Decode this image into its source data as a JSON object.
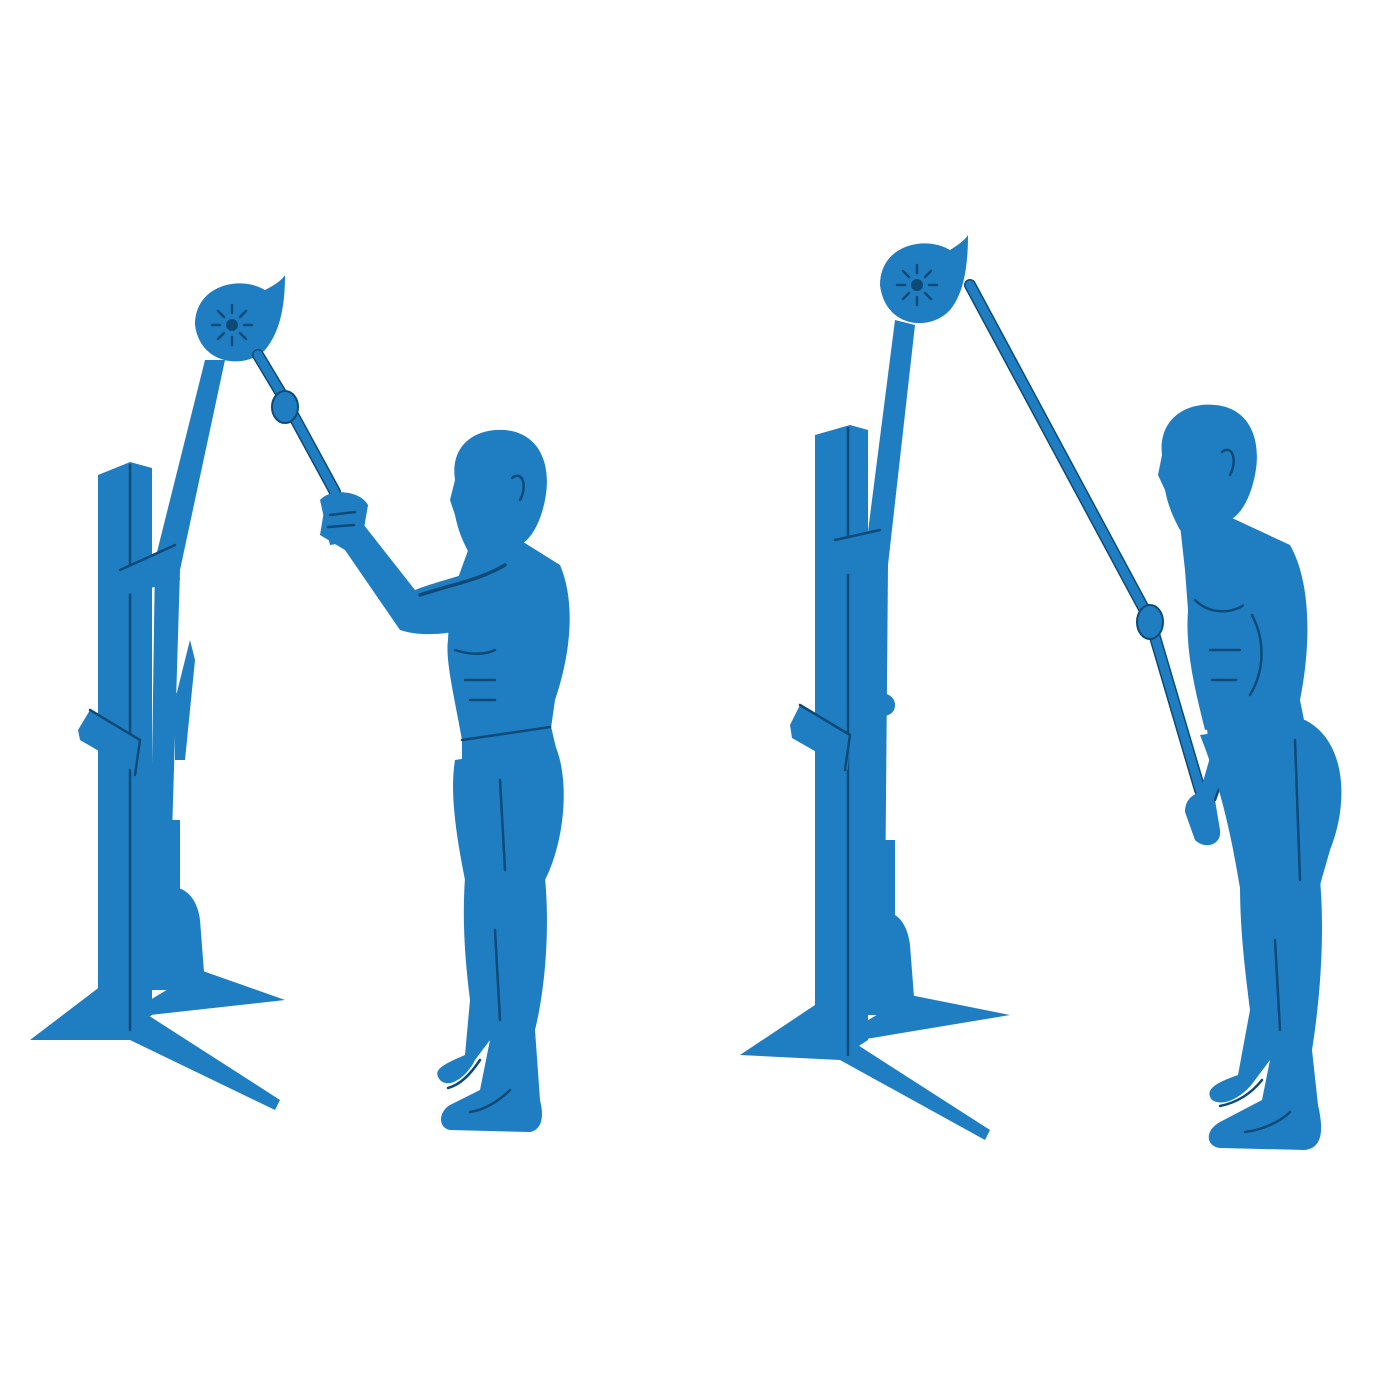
{
  "colors": {
    "figure": "#1f7ec2",
    "ink": "#0d4a78",
    "background": "#ffffff"
  },
  "panels": [
    {
      "position": "start",
      "description_icon": "cable-machine-icon"
    },
    {
      "position": "end",
      "description_icon": "cable-machine-icon"
    }
  ]
}
